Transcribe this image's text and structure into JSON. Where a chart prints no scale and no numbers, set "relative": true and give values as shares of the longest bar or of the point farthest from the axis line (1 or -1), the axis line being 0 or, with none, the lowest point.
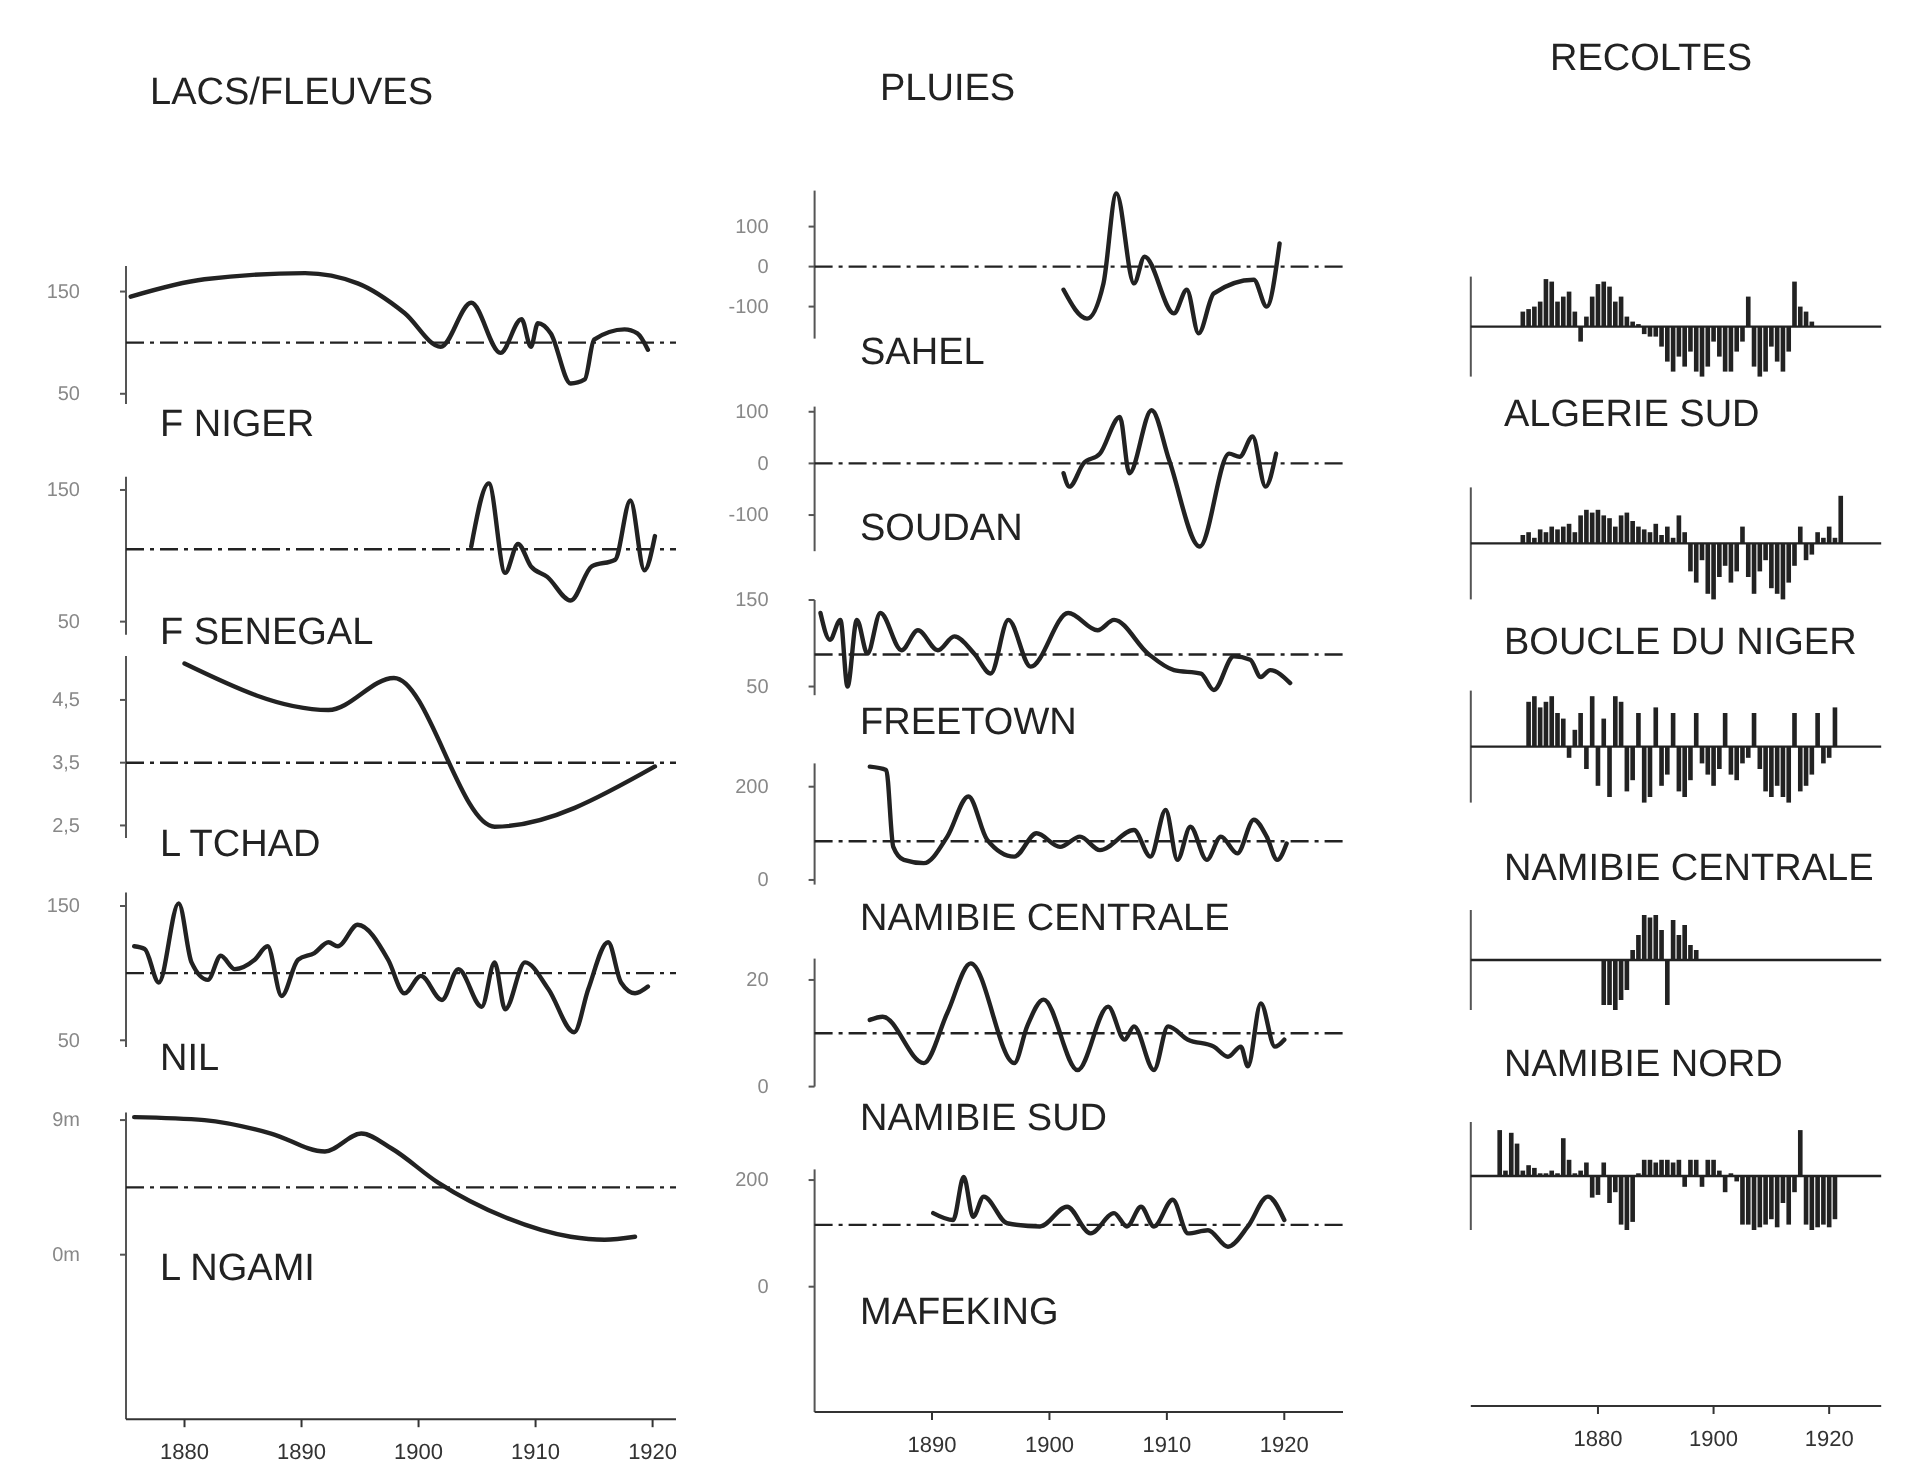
{
  "chart_data": [
    {
      "type": "line",
      "title": "LACS/FLEUVES",
      "xlim": [
        1875,
        1922
      ],
      "ylim": [
        40,
        175
      ],
      "yticks": [
        150,
        50
      ],
      "tick_labels": "y",
      "ref_lines": [
        {
          "axis": "y",
          "value": 100,
          "line_style": "dashed"
        }
      ],
      "series": [
        {
          "name": "F NIGER",
          "color": "#222222",
          "x": [
            1875.4,
            1881.7,
            1890.3,
            1894.8,
            1898.8,
            1901.9,
            1904.5,
            1907,
            1908.8,
            1909.6,
            1910.2,
            1911.3,
            1913,
            1914.2,
            1915,
            1917.6,
            1918.7,
            1919.6
          ],
          "values": [
            145,
            162,
            168,
            158,
            129,
            96,
            139,
            90,
            123,
            96,
            119,
            109,
            60,
            64,
            103,
            113,
            109,
            93
          ]
        }
      ]
    },
    {
      "type": "line",
      "xlim": [
        1875,
        1922
      ],
      "ylim": [
        40,
        160
      ],
      "yticks": [
        150,
        50
      ],
      "tick_labels": "y",
      "ref_lines": [
        {
          "axis": "y",
          "value": 105,
          "line_style": "dashed"
        }
      ],
      "series": [
        {
          "name": "F SENEGAL",
          "color": "#222222",
          "x": [
            1904.5,
            1906,
            1907.4,
            1908.5,
            1909.6,
            1911,
            1913,
            1914.8,
            1916.8,
            1918.1,
            1919.3,
            1920.2
          ],
          "values": [
            107,
            155,
            87,
            109,
            92,
            84,
            66,
            92,
            97,
            142,
            89,
            115
          ]
        }
      ]
    },
    {
      "type": "line",
      "xlim": [
        1875,
        1922
      ],
      "ylim": [
        2.3,
        5.2
      ],
      "yticks": [
        {
          "value": 4.5,
          "label": "4,5"
        },
        {
          "value": 3.5,
          "label": "3,5"
        },
        {
          "value": 2.5,
          "label": "2,5"
        }
      ],
      "tick_labels": "y",
      "ref_lines": [
        {
          "axis": "y",
          "value": 3.5,
          "line_style": "dashed"
        }
      ],
      "series": [
        {
          "name": "L TCHAD",
          "color": "#222222",
          "x": [
            1880,
            1892.3,
            1897.9,
            1906.5,
            1920.2
          ],
          "values": [
            5.08,
            4.34,
            4.85,
            2.48,
            3.44
          ]
        }
      ]
    },
    {
      "type": "line",
      "xlim": [
        1875,
        1922
      ],
      "ylim": [
        45,
        160
      ],
      "yticks": [
        150,
        50
      ],
      "tick_labels": "y",
      "ref_lines": [
        {
          "axis": "y",
          "value": 100,
          "line_style": "dashed"
        }
      ],
      "series": [
        {
          "name": "NIL",
          "color": "#222222",
          "x": [
            1875.7,
            1876.6,
            1877.8,
            1879.5,
            1880.6,
            1882,
            1883.1,
            1884.3,
            1886,
            1887.1,
            1888.3,
            1889.7,
            1891.1,
            1892.3,
            1893.1,
            1894.8,
            1897.4,
            1898.8,
            1900.2,
            1902,
            1903.4,
            1905.4,
            1906.5,
            1907.4,
            1909.1,
            1911.1,
            1913.3,
            1914.5,
            1916.2,
            1917.3,
            1918.5,
            1919.6
          ],
          "values": [
            120,
            118,
            93,
            152,
            108,
            95,
            113,
            103,
            110,
            120,
            83,
            110,
            115,
            123,
            120,
            136,
            110,
            85,
            98,
            80,
            103,
            75,
            108,
            73,
            108,
            88,
            56,
            88,
            123,
            93,
            85,
            90
          ]
        }
      ]
    },
    {
      "type": "line",
      "xlim": [
        1875,
        1922
      ],
      "ylim": [
        -11,
        9.5
      ],
      "yticks": [
        {
          "value": 9,
          "label": "9m"
        },
        {
          "value": 0,
          "label": "0m"
        }
      ],
      "xticks": [
        1880,
        1890,
        1900,
        1910,
        1920
      ],
      "ref_lines": [
        {
          "axis": "y",
          "value": 4.5,
          "line_style": "dashed"
        }
      ],
      "series": [
        {
          "name": "L NGAMI",
          "color": "#222222",
          "x": [
            1875.7,
            1881.7,
            1887.4,
            1892,
            1895.1,
            1897.7,
            1901.7,
            1907.4,
            1913,
            1915.9,
            1918.5
          ],
          "values": [
            9.2,
            9,
            8.1,
            6.9,
            8.1,
            7.1,
            4.8,
            2.5,
            1.2,
            1,
            1.2
          ]
        }
      ]
    },
    {
      "type": "line",
      "title": "PLUIES",
      "xlim": [
        1880,
        1925
      ],
      "ylim": [
        -180,
        190
      ],
      "yticks": [
        100,
        0,
        -100
      ],
      "tick_labels": "y",
      "ref_lines": [
        {
          "axis": "y",
          "value": 0,
          "line_style": "dashed"
        }
      ],
      "series": [
        {
          "name": "SAHEL",
          "color": "#222222",
          "x": [
            1901.2,
            1903.2,
            1904.6,
            1905.7,
            1907.2,
            1908.1,
            1910.6,
            1911.7,
            1912.7,
            1914,
            1917.4,
            1918.5,
            1919.6
          ],
          "values": [
            -58,
            -130,
            -42,
            183,
            -42,
            25,
            -117,
            -58,
            -167,
            -67,
            -33,
            -100,
            58
          ]
        }
      ]
    },
    {
      "type": "line",
      "xlim": [
        1880,
        1925
      ],
      "ylim": [
        -170,
        110
      ],
      "yticks": [
        100,
        0,
        -100
      ],
      "tick_labels": "y",
      "ref_lines": [
        {
          "axis": "y",
          "value": 0,
          "line_style": "dashed"
        }
      ],
      "series": [
        {
          "name": "SOUDAN",
          "color": "#222222",
          "x": [
            1901.2,
            1901.7,
            1902.9,
            1904.3,
            1906,
            1906.8,
            1908.7,
            1910.2,
            1912.8,
            1915.3,
            1916.2,
            1917.3,
            1918.4,
            1919.3
          ],
          "values": [
            -19,
            -45,
            0,
            19,
            90,
            -19,
            103,
            6,
            -161,
            19,
            13,
            52,
            -45,
            19
          ]
        }
      ]
    },
    {
      "type": "line",
      "xlim": [
        1880,
        1925
      ],
      "ylim": [
        40,
        150
      ],
      "yticks": [
        150,
        50
      ],
      "tick_labels": "y",
      "ref_lines": [
        {
          "axis": "y",
          "value": 87,
          "line_style": "dashed"
        }
      ],
      "series": [
        {
          "name": "FREETOWN",
          "color": "#222222",
          "x": [
            1880.5,
            1881.3,
            1882.2,
            1882.8,
            1883.6,
            1884.5,
            1885.6,
            1887.4,
            1888.8,
            1890.5,
            1891.9,
            1893.6,
            1895,
            1896.5,
            1898.4,
            1901.6,
            1904.1,
            1905.5,
            1908.4,
            1910.6,
            1912.9,
            1914,
            1915.7,
            1917.1,
            1918,
            1918.8,
            1920.5
          ],
          "values": [
            135,
            104,
            127,
            50,
            127,
            88,
            135,
            92,
            115,
            92,
            108,
            88,
            65,
            127,
            73,
            135,
            115,
            127,
            88,
            69,
            65,
            46,
            85,
            81,
            61,
            69,
            54
          ]
        }
      ]
    },
    {
      "type": "line",
      "xlim": [
        1880,
        1925
      ],
      "ylim": [
        -10,
        250
      ],
      "yticks": [
        200,
        0
      ],
      "tick_labels": "y",
      "ref_lines": [
        {
          "axis": "y",
          "value": 83,
          "line_style": "dashed"
        }
      ],
      "series": [
        {
          "name": "NAMIBIE CENTRALE",
          "color": "#222222",
          "x": [
            1884.7,
            1886.1,
            1886.7,
            1887.6,
            1889.3,
            1891.3,
            1893.1,
            1894.7,
            1897,
            1898.9,
            1900.9,
            1902.6,
            1904.3,
            1907.2,
            1908.6,
            1909.9,
            1910.9,
            1912,
            1913.4,
            1914.6,
            1916,
            1917.4,
            1918.5,
            1919.4,
            1920.2
          ],
          "values": [
            243,
            236,
            71,
            43,
            36,
            93,
            179,
            86,
            50,
            100,
            71,
            93,
            64,
            107,
            50,
            150,
            43,
            114,
            43,
            93,
            57,
            129,
            93,
            43,
            78
          ]
        }
      ]
    },
    {
      "type": "line",
      "xlim": [
        1880,
        1925
      ],
      "ylim": [
        0,
        24
      ],
      "yticks": [
        20,
        0
      ],
      "tick_labels": "y",
      "ref_lines": [
        {
          "axis": "y",
          "value": 10,
          "line_style": "dashed"
        }
      ],
      "series": [
        {
          "name": "NAMIBIE SUD",
          "color": "#222222",
          "x": [
            1884.7,
            1885.8,
            1889.3,
            1891.3,
            1893.3,
            1897,
            1898.1,
            1899.5,
            1902.4,
            1905,
            1906.4,
            1907.2,
            1908.9,
            1910.1,
            1911.8,
            1914,
            1915.2,
            1916.3,
            1916.9,
            1918,
            1919.2,
            1920
          ],
          "values": [
            12.5,
            13.1,
            4.4,
            13.8,
            23.1,
            4.4,
            11.3,
            16.3,
            3.1,
            15,
            8.8,
            11.3,
            3.1,
            11.3,
            8.8,
            7.5,
            5.6,
            7.5,
            3.8,
            15.6,
            7.5,
            8.8
          ]
        }
      ]
    },
    {
      "type": "line",
      "xlim": [
        1880,
        1925
      ],
      "ylim": [
        -235,
        220
      ],
      "yticks": [
        200,
        0
      ],
      "xticks": [
        1890,
        1900,
        1910,
        1920
      ],
      "ref_lines": [
        {
          "axis": "y",
          "value": 116,
          "line_style": "dashed"
        }
      ],
      "series": [
        {
          "name": "MAFEKING",
          "color": "#222222",
          "x": [
            1890.1,
            1891.8,
            1892.7,
            1893.5,
            1894.4,
            1896.4,
            1899.2,
            1901.5,
            1903.5,
            1905.5,
            1906.6,
            1907.8,
            1908.9,
            1910.5,
            1911.8,
            1913.5,
            1915.2,
            1916.9,
            1918.6,
            1920
          ],
          "values": [
            138,
            125,
            206,
            131,
            169,
            119,
            113,
            150,
            100,
            138,
            113,
            150,
            113,
            163,
            100,
            106,
            75,
            113,
            169,
            125
          ]
        }
      ]
    },
    {
      "type": "bar",
      "title": "RECOLTES",
      "relative": true,
      "xlim": [
        1858,
        1929
      ],
      "tick_labels": false,
      "series": [
        {
          "name": "ALGERIE SUD",
          "color": "#222222",
          "x": [
            1867,
            1868,
            1869,
            1870,
            1871,
            1872,
            1873,
            1874,
            1875,
            1876,
            1877,
            1878,
            1879,
            1880,
            1881,
            1882,
            1883,
            1884,
            1885,
            1886,
            1887,
            1888,
            1889,
            1890,
            1891,
            1892,
            1893,
            1894,
            1895,
            1896,
            1897,
            1898,
            1899,
            1900,
            1901,
            1902,
            1903,
            1904,
            1905,
            1906,
            1907,
            1908,
            1909,
            1910,
            1911,
            1912,
            1913,
            1914,
            1915,
            1916,
            1917
          ],
          "values": [
            0.3,
            0.35,
            0.4,
            0.5,
            0.95,
            0.9,
            0.5,
            0.6,
            0.7,
            0.3,
            -0.3,
            0.2,
            0.6,
            0.85,
            0.9,
            0.8,
            0.5,
            0.6,
            0.2,
            0.1,
            0.05,
            -0.15,
            -0.2,
            -0.2,
            -0.4,
            -0.7,
            -0.9,
            -0.6,
            -0.8,
            -0.5,
            -0.9,
            -1,
            -0.8,
            -0.3,
            -0.6,
            -0.9,
            -0.9,
            -0.5,
            -0.3,
            0.6,
            -0.8,
            -1,
            -0.9,
            -0.4,
            -0.7,
            -0.9,
            -0.5,
            0.9,
            0.4,
            0.3,
            0.1
          ]
        }
      ]
    },
    {
      "type": "bar",
      "relative": true,
      "xlim": [
        1858,
        1929
      ],
      "tick_labels": false,
      "series": [
        {
          "name": "BOUCLE DU NIGER",
          "color": "#222222",
          "x": [
            1867,
            1868,
            1869,
            1870,
            1871,
            1872,
            1873,
            1874,
            1875,
            1876,
            1877,
            1878,
            1879,
            1880,
            1881,
            1882,
            1883,
            1884,
            1885,
            1886,
            1887,
            1888,
            1889,
            1890,
            1891,
            1892,
            1893,
            1894,
            1895,
            1896,
            1897,
            1898,
            1899,
            1900,
            1901,
            1902,
            1903,
            1904,
            1905,
            1906,
            1907,
            1908,
            1909,
            1910,
            1911,
            1912,
            1913,
            1914,
            1915,
            1916,
            1917,
            1918,
            1919,
            1920,
            1921,
            1922
          ],
          "values": [
            0.15,
            0.2,
            0.1,
            0.25,
            0.2,
            0.3,
            0.25,
            0.3,
            0.35,
            0.2,
            0.5,
            0.6,
            0.55,
            0.6,
            0.5,
            0.45,
            0.3,
            0.5,
            0.55,
            0.4,
            0.3,
            0.25,
            0.2,
            0.35,
            0.15,
            0.3,
            0.1,
            0.5,
            0.2,
            -0.5,
            -0.7,
            -0.3,
            -0.9,
            -1,
            -0.6,
            -0.4,
            -0.7,
            -0.5,
            0.3,
            -0.6,
            -0.9,
            -0.5,
            -0.3,
            -0.8,
            -0.9,
            -1,
            -0.7,
            -0.4,
            0.3,
            -0.3,
            -0.2,
            0.2,
            0.1,
            0.3,
            0.1,
            0.85
          ]
        }
      ]
    },
    {
      "type": "bar",
      "relative": true,
      "xlim": [
        1858,
        1929
      ],
      "tick_labels": false,
      "series": [
        {
          "name": "NAMIBIE CENTRALE",
          "color": "#222222",
          "x": [
            1868,
            1869,
            1870,
            1871,
            1872,
            1873,
            1874,
            1875,
            1876,
            1877,
            1878,
            1879,
            1880,
            1881,
            1882,
            1883,
            1884,
            1885,
            1886,
            1887,
            1888,
            1889,
            1890,
            1891,
            1892,
            1893,
            1894,
            1895,
            1896,
            1897,
            1898,
            1899,
            1900,
            1901,
            1902,
            1903,
            1904,
            1905,
            1906,
            1907,
            1908,
            1909,
            1910,
            1911,
            1912,
            1913,
            1914,
            1915,
            1916,
            1917,
            1918,
            1919,
            1920,
            1921
          ],
          "values": [
            0.8,
            0.9,
            0.7,
            0.8,
            0.9,
            0.6,
            0.5,
            -0.2,
            0.3,
            0.6,
            -0.4,
            0.9,
            -0.7,
            0.5,
            -0.9,
            0.9,
            0.8,
            -0.8,
            -0.6,
            0.6,
            -1,
            -0.9,
            0.7,
            -0.7,
            -0.5,
            0.6,
            -0.8,
            -0.9,
            -0.6,
            0.6,
            -0.3,
            -0.5,
            -0.7,
            -0.4,
            0.6,
            -0.5,
            -0.6,
            -0.3,
            -0.2,
            0.6,
            -0.4,
            -0.8,
            -0.9,
            -0.7,
            -0.9,
            -1,
            0.6,
            -0.8,
            -0.7,
            -0.5,
            0.6,
            -0.3,
            -0.2,
            0.7
          ]
        }
      ]
    },
    {
      "type": "bar",
      "relative": true,
      "xlim": [
        1858,
        1929
      ],
      "tick_labels": false,
      "series": [
        {
          "name": "NAMIBIE NORD",
          "color": "#222222",
          "x": [
            1881,
            1882,
            1883,
            1884,
            1885,
            1886,
            1887,
            1888,
            1889,
            1890,
            1891,
            1892,
            1893,
            1894,
            1895,
            1896,
            1897
          ],
          "values": [
            -0.9,
            -0.9,
            -1,
            -0.8,
            -0.6,
            0.2,
            0.5,
            0.9,
            0.85,
            0.9,
            0.6,
            -0.9,
            0.8,
            0.5,
            0.7,
            0.3,
            0.2
          ]
        }
      ]
    },
    {
      "type": "bar",
      "relative": true,
      "xlim": [
        1858,
        1929
      ],
      "xticks": [
        1880,
        1900,
        1920
      ],
      "tick_labels": "x",
      "series": [
        {
          "color": "#222222",
          "x": [
            1863,
            1864,
            1865,
            1866,
            1867,
            1868,
            1869,
            1870,
            1871,
            1872,
            1873,
            1874,
            1875,
            1876,
            1877,
            1878,
            1879,
            1880,
            1881,
            1882,
            1883,
            1884,
            1885,
            1886,
            1887,
            1888,
            1889,
            1890,
            1891,
            1892,
            1893,
            1894,
            1895,
            1896,
            1897,
            1898,
            1899,
            1900,
            1901,
            1902,
            1903,
            1904,
            1905,
            1906,
            1907,
            1908,
            1909,
            1910,
            1911,
            1912,
            1913,
            1914,
            1915,
            1916,
            1917,
            1918,
            1919,
            1920,
            1921
          ],
          "values": [
            0.85,
            0.1,
            0.8,
            0.6,
            0.1,
            0.2,
            0.15,
            0.05,
            0.05,
            0.1,
            0.05,
            0.7,
            0.3,
            0.05,
            0.1,
            0.25,
            -0.4,
            -0.35,
            0.25,
            -0.5,
            -0.3,
            -0.9,
            -1,
            -0.85,
            0.05,
            0.3,
            0.3,
            0.25,
            0.3,
            0.3,
            0.25,
            0.3,
            -0.2,
            0.3,
            0.3,
            -0.2,
            0.3,
            0.3,
            0.1,
            -0.3,
            0.05,
            -0.1,
            -0.9,
            -0.9,
            -1,
            -0.95,
            -0.9,
            -0.8,
            -0.95,
            -0.5,
            -0.9,
            -0.3,
            0.85,
            -0.9,
            -1,
            -0.95,
            -0.9,
            -0.95,
            -0.8
          ]
        }
      ]
    }
  ]
}
